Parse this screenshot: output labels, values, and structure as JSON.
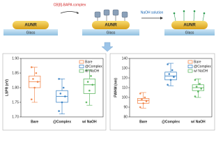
{
  "schematic": {
    "panels": [
      {
        "particle": "AUNR",
        "substrate": "Glass"
      },
      {
        "particle": "AUNR",
        "substrate": "Glass"
      },
      {
        "particle": "AUNR",
        "substrate": "Glass"
      }
    ],
    "arrows": [
      "CB[8]-BAPA complex",
      "NaOH solution"
    ]
  },
  "chart_data": [
    {
      "type": "box",
      "ylabel": "LSPR (eV)",
      "categories": [
        "Bare",
        "@Complex",
        "w/ NaOH"
      ],
      "ylim": [
        1.7,
        1.9
      ],
      "yticks": [
        {
          "value": 1.7,
          "label": "1.70"
        },
        {
          "value": 1.75,
          "label": "1.75"
        },
        {
          "value": 1.8,
          "label": "1.80"
        },
        {
          "value": 1.85,
          "label": "1.85"
        },
        {
          "value": 1.9,
          "label": "1.90"
        }
      ],
      "legend": "upper right",
      "series": [
        {
          "name": "Bare",
          "color": "#f07c3c",
          "box": {
            "low": 1.75,
            "q1": 1.8,
            "median": 1.82,
            "q3": 1.84,
            "high": 1.87
          },
          "points": [
            1.76,
            1.8,
            1.82,
            1.83,
            1.85,
            1.87
          ]
        },
        {
          "name": "@Complex",
          "color": "#2a78c0",
          "box": {
            "low": 1.71,
            "q1": 1.75,
            "median": 1.77,
            "q3": 1.79,
            "high": 1.83
          },
          "points": [
            1.72,
            1.75,
            1.77,
            1.78,
            1.8,
            1.83
          ]
        },
        {
          "name": "w/ NaOH",
          "color": "#4caf50",
          "box": {
            "low": 1.74,
            "q1": 1.78,
            "median": 1.81,
            "q3": 1.83,
            "high": 1.86
          },
          "points": [
            1.75,
            1.79,
            1.81,
            1.82,
            1.84,
            1.86
          ]
        }
      ]
    },
    {
      "type": "box",
      "ylabel": "FWHM (nm)",
      "categories": [
        "Bare",
        "@Complex",
        "w/ NaOH"
      ],
      "ylim": [
        80,
        140
      ],
      "yticks": [
        80,
        90,
        100,
        110,
        120,
        130,
        140
      ],
      "legend": "upper right",
      "series": [
        {
          "name": "Bare",
          "color": "#f07c3c",
          "box": {
            "low": 89,
            "q1": 94,
            "median": 97,
            "q3": 99,
            "high": 105
          },
          "points": [
            90,
            94,
            96,
            98,
            100,
            104
          ]
        },
        {
          "name": "@Complex",
          "color": "#2a78c0",
          "box": {
            "low": 112,
            "q1": 118,
            "median": 122,
            "q3": 126,
            "high": 135
          },
          "points": [
            113,
            118,
            121,
            124,
            128,
            134
          ]
        },
        {
          "name": "w/ NaOH",
          "color": "#4caf50",
          "box": {
            "low": 100,
            "q1": 107,
            "median": 110,
            "q3": 113,
            "high": 119
          },
          "points": [
            101,
            106,
            109,
            111,
            114,
            118
          ]
        }
      ]
    }
  ]
}
